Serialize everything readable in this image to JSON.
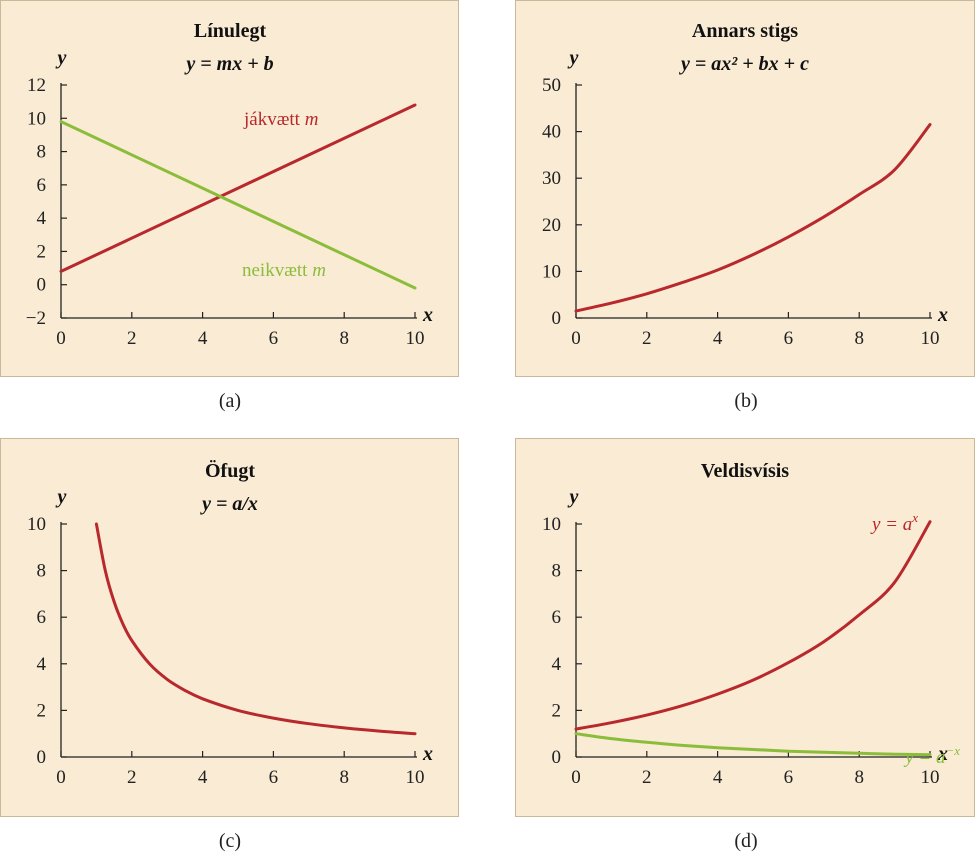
{
  "colors": {
    "red": "#b8282c",
    "green": "#8bbd3a",
    "panel_bg": "#f9ebd4",
    "axis": "#222222"
  },
  "chart_data": [
    {
      "type": "line",
      "title": "Línulegt",
      "subtitle": "y = mx + b",
      "xlabel": "x",
      "ylabel": "y",
      "xlim": [
        0,
        10
      ],
      "ylim": [
        -2,
        12
      ],
      "xticks": [
        0,
        2,
        4,
        6,
        8,
        10
      ],
      "yticks": [
        -2,
        0,
        2,
        4,
        6,
        8,
        10,
        12
      ],
      "ytick_labels": [
        "−2",
        "0",
        "2",
        "4",
        "6",
        "8",
        "10",
        "12"
      ],
      "caption": "(a)",
      "series": [
        {
          "name": "jákvætt m",
          "label_text": "jákvætt ",
          "label_italic": "m",
          "color": "#b8282c",
          "x": [
            0,
            10
          ],
          "y": [
            0.8,
            10.8
          ]
        },
        {
          "name": "neikvætt m",
          "label_text": "neikvætt ",
          "label_italic": "m",
          "color": "#8bbd3a",
          "x": [
            0,
            10
          ],
          "y": [
            9.8,
            -0.2
          ]
        }
      ]
    },
    {
      "type": "line",
      "title": "Annars stigs",
      "subtitle": "y = ax² + bx + c",
      "xlabel": "x",
      "ylabel": "y",
      "xlim": [
        0,
        10
      ],
      "ylim": [
        0,
        50
      ],
      "xticks": [
        0,
        2,
        4,
        6,
        8,
        10
      ],
      "yticks": [
        0,
        10,
        20,
        30,
        40,
        50
      ],
      "caption": "(b)",
      "series": [
        {
          "color": "#b8282c",
          "x": [
            0,
            1,
            2,
            3,
            4,
            5,
            6,
            7,
            8,
            9,
            10
          ],
          "y": [
            1.5,
            3.2,
            5.2,
            7.6,
            10.3,
            13.6,
            17.4,
            21.7,
            26.5,
            31.8,
            41.5
          ]
        }
      ]
    },
    {
      "type": "line",
      "title": "Öfugt",
      "subtitle": "y = a/x",
      "xlabel": "x",
      "ylabel": "y",
      "xlim": [
        0,
        10
      ],
      "ylim": [
        0,
        10
      ],
      "xticks": [
        0,
        2,
        4,
        6,
        8,
        10
      ],
      "yticks": [
        0,
        2,
        4,
        6,
        8,
        10
      ],
      "caption": "(c)",
      "series": [
        {
          "color": "#b8282c",
          "x": [
            1,
            1.25,
            1.5,
            1.75,
            2,
            2.5,
            3,
            3.5,
            4,
            5,
            6,
            7,
            8,
            9,
            10
          ],
          "y": [
            10,
            8,
            6.67,
            5.71,
            5,
            4,
            3.33,
            2.86,
            2.5,
            2,
            1.67,
            1.43,
            1.25,
            1.11,
            1
          ]
        }
      ]
    },
    {
      "type": "line",
      "title": "Veldisvísis",
      "xlabel": "x",
      "ylabel": "y",
      "xlim": [
        0,
        10
      ],
      "ylim": [
        0,
        10
      ],
      "xticks": [
        0,
        2,
        4,
        6,
        8,
        10
      ],
      "yticks": [
        0,
        2,
        4,
        6,
        8,
        10
      ],
      "caption": "(d)",
      "series": [
        {
          "name": "y = aˣ",
          "label_base": "y = a",
          "label_sup": "x",
          "color": "#b8282c",
          "x": [
            0,
            1,
            2,
            3,
            4,
            5,
            6,
            7,
            8,
            9,
            10
          ],
          "y": [
            1.2,
            1.47,
            1.8,
            2.2,
            2.7,
            3.3,
            4.05,
            4.95,
            6.1,
            7.5,
            10.1
          ]
        },
        {
          "name": "y = a⁻ˣ",
          "label_base": "y = a",
          "label_sup": "−x",
          "color": "#8bbd3a",
          "x": [
            0,
            1,
            2,
            3,
            4,
            5,
            6,
            7,
            8,
            9,
            10
          ],
          "y": [
            1.0,
            0.79,
            0.63,
            0.5,
            0.4,
            0.32,
            0.25,
            0.2,
            0.16,
            0.12,
            0.1
          ]
        }
      ]
    }
  ]
}
